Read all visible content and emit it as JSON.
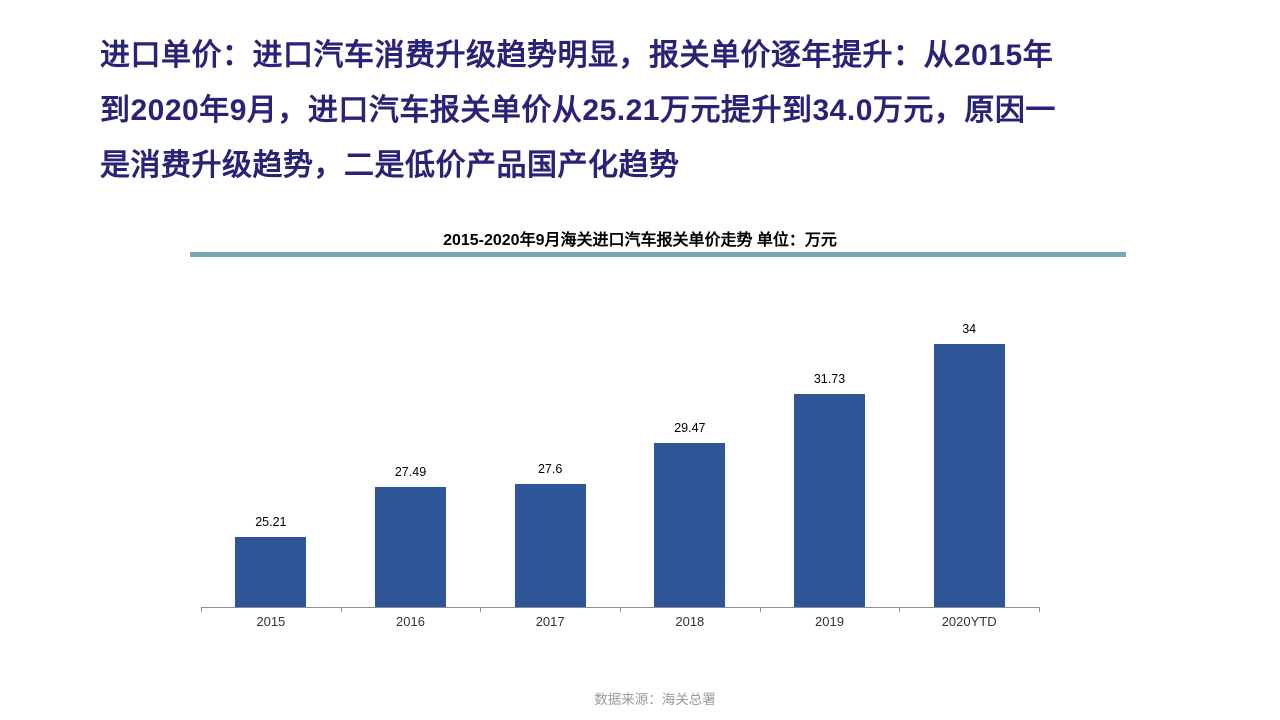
{
  "slide": {
    "title_full": "进口单价：进口汽车消费升级趋势明显，报关单价逐年提升：从2015年到2020年9月，进口汽车报关单价从25.21万元提升到34.0万元，原因一是消费升级趋势，二是低价产品国产化趋势",
    "title_lines": [
      "进口单价：进口汽车消费升级趋势明显，报关单价逐年提升：从2015年",
      "到2020年9月，进口汽车报关单价从25.21万元提升到34.0万元，原因一",
      "是消费升级趋势，二是低价产品国产化趋势"
    ],
    "source": "数据来源：海关总署"
  },
  "chart_data": {
    "type": "bar",
    "title": "2015-2020年9月海关进口汽车报关单价走势  单位：万元",
    "unit": "万元",
    "categories": [
      "2015",
      "2016",
      "2017",
      "2018",
      "2019",
      "2020YTD"
    ],
    "values": [
      25.21,
      27.49,
      27.6,
      29.47,
      31.73,
      34
    ],
    "value_labels": [
      "25.21",
      "27.49",
      "27.6",
      "29.47",
      "31.73",
      "34"
    ],
    "xlabel": "",
    "ylabel": "",
    "ylim": [
      22,
      36
    ],
    "grid": false,
    "legend": false,
    "bar_color": "#2E5596"
  },
  "colors": {
    "title_text": "#282377",
    "rule": "#7BA7B3",
    "bar": "#2E5596",
    "axis": "#8C8C8C",
    "source_text": "#9A9A9A"
  }
}
